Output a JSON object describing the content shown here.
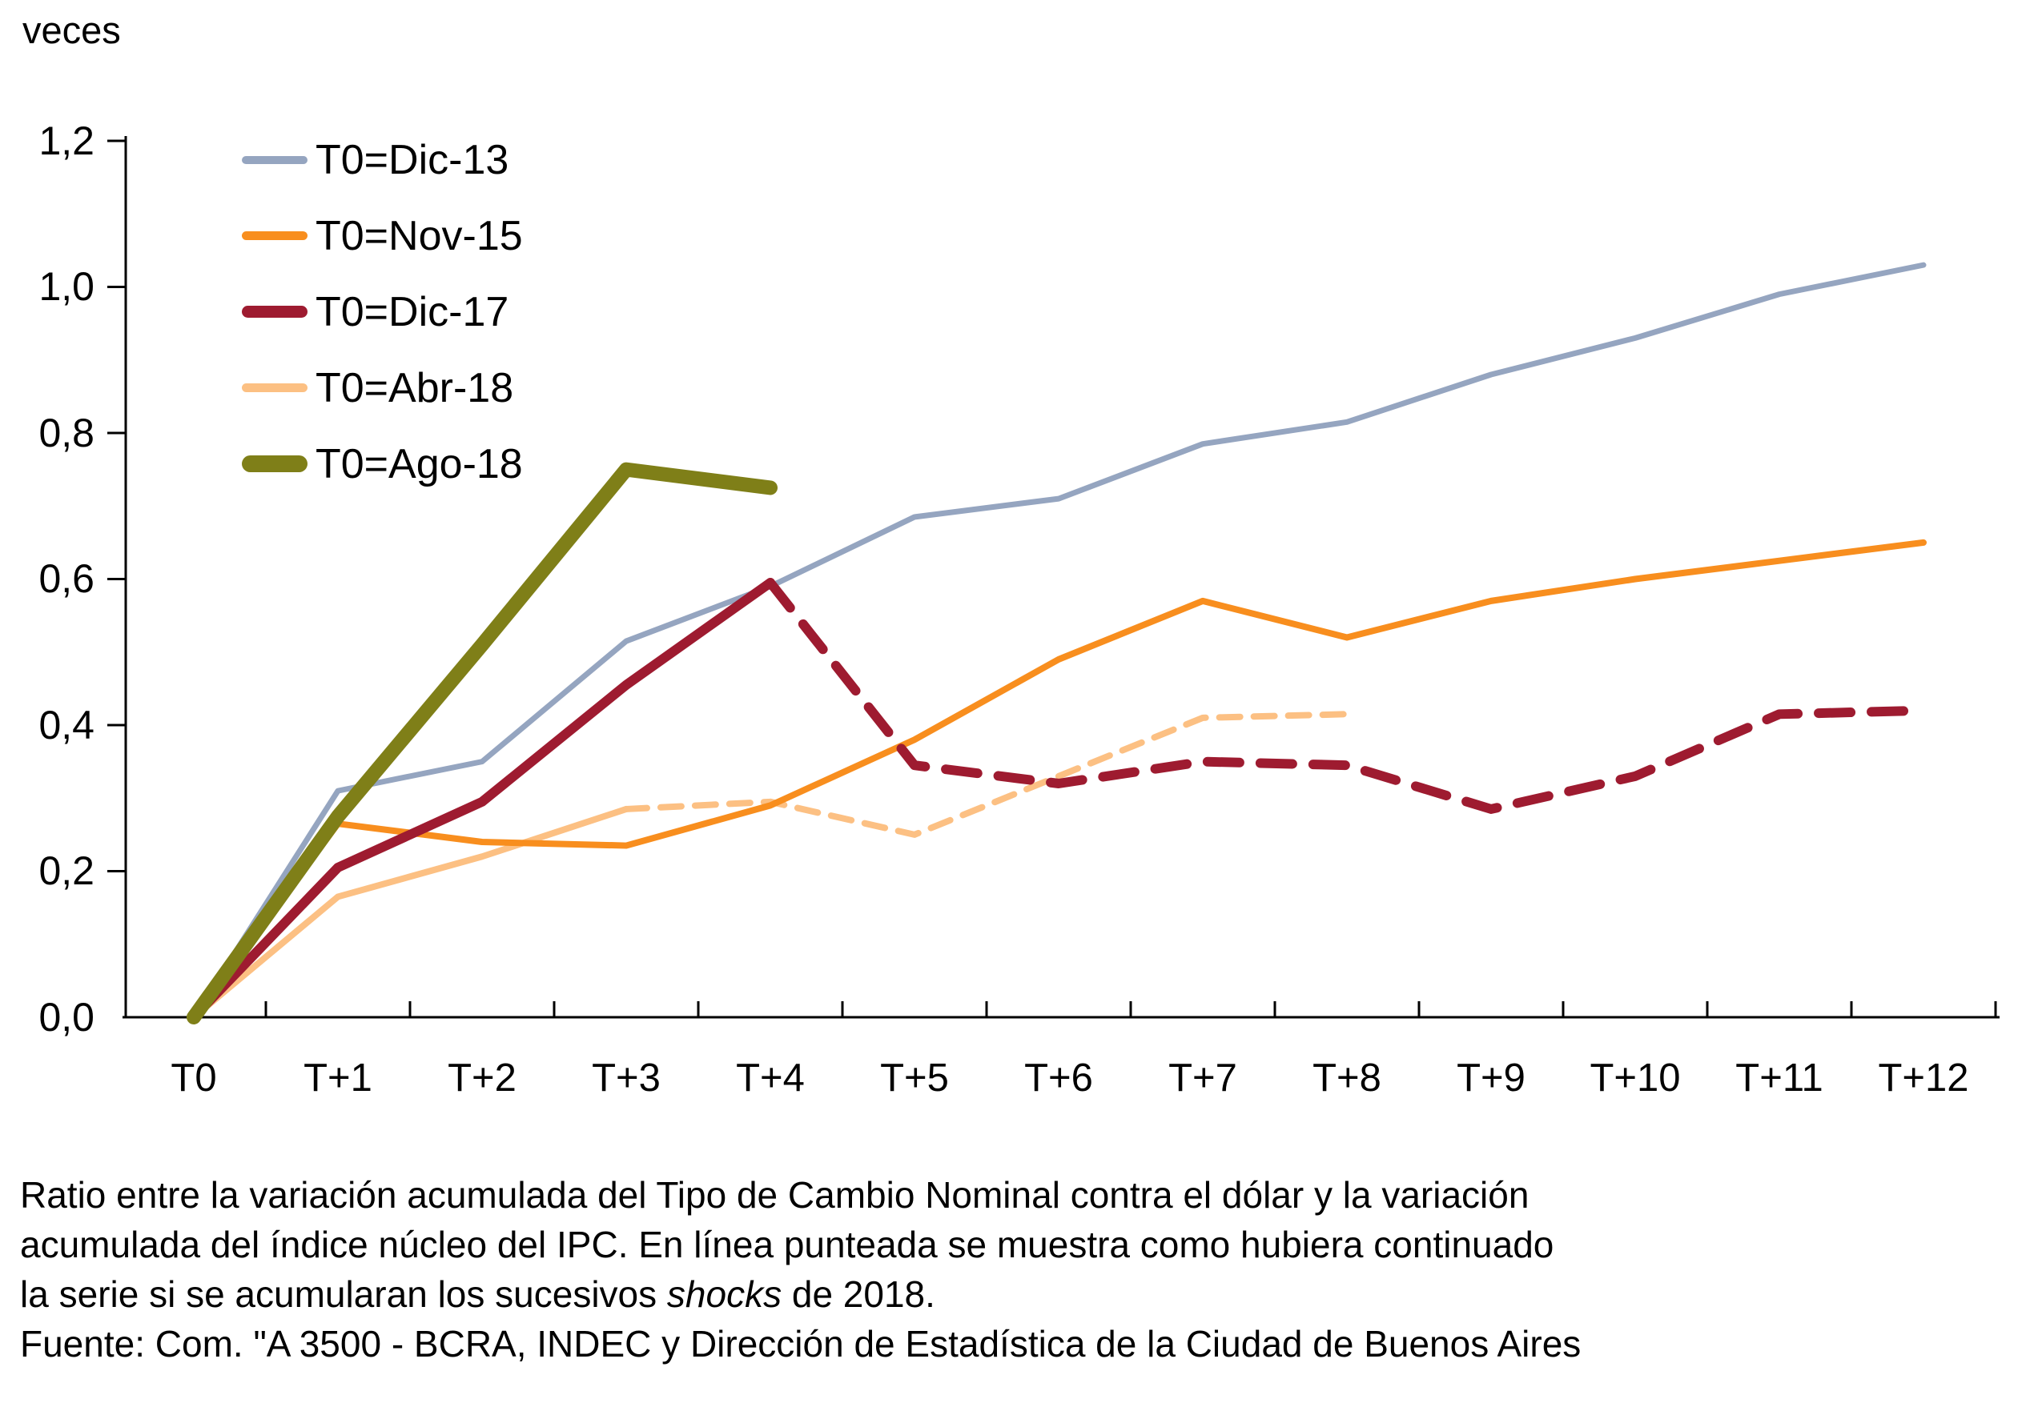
{
  "chart_data": {
    "type": "line",
    "title": "",
    "ylabel": "veces",
    "xlabel": "",
    "categories": [
      "T0",
      "T+1",
      "T+2",
      "T+3",
      "T+4",
      "T+5",
      "T+6",
      "T+7",
      "T+8",
      "T+9",
      "T+10",
      "T+11",
      "T+12"
    ],
    "ylim": [
      0,
      1.2
    ],
    "y_tick_values": [
      0.0,
      0.2,
      0.4,
      0.6,
      0.8,
      1.0,
      1.2
    ],
    "y_tick_labels": [
      "0,0",
      "0,2",
      "0,4",
      "0,6",
      "0,8",
      "1,0",
      "1,2"
    ],
    "grid": false,
    "legend_position": "top-left-inside",
    "dashed_meaning": "En linea punteada se muestra como hubiera continuado la serie si se acumularan los sucesivos shocks de 2018",
    "series": [
      {
        "name": "T0=Dic-13",
        "color": "#95A5C0",
        "line_width": 7,
        "segments": [
          {
            "style": "solid",
            "start_index": 0,
            "values": [
              0,
              0.31,
              0.35,
              0.515,
              0.59,
              0.685,
              0.71,
              0.785,
              0.815,
              0.88,
              0.93,
              0.99,
              1.03
            ]
          }
        ]
      },
      {
        "name": "T0=Nov-15",
        "color": "#F88E1E",
        "line_width": 8,
        "segments": [
          {
            "style": "solid",
            "start_index": 0,
            "values": [
              0,
              0.265,
              0.24,
              0.235,
              0.29,
              0.38,
              0.49,
              0.57,
              0.52,
              0.57,
              0.6,
              0.625,
              0.65
            ]
          }
        ]
      },
      {
        "name": "T0=Dic-17",
        "color": "#9E1B30",
        "line_width": 12,
        "segments": [
          {
            "style": "solid",
            "start_index": 0,
            "values": [
              0,
              0.205,
              0.295,
              0.455,
              0.595
            ]
          },
          {
            "style": "dashed",
            "start_index": 4,
            "values": [
              0.595,
              0.345,
              0.32,
              0.35,
              0.345,
              0.285,
              0.33,
              0.415,
              0.42
            ]
          }
        ]
      },
      {
        "name": "T0=Abr-18",
        "color": "#FCC083",
        "line_width": 8,
        "segments": [
          {
            "style": "solid",
            "start_index": 0,
            "values": [
              0,
              0.165,
              0.22,
              0.285
            ]
          },
          {
            "style": "dashed",
            "start_index": 3,
            "values": [
              0.285,
              0.295,
              0.25,
              0.33,
              0.41,
              0.415
            ]
          }
        ]
      },
      {
        "name": "T0=Ago-18",
        "color": "#7F7F18",
        "line_width": 18,
        "segments": [
          {
            "style": "solid",
            "start_index": 0,
            "values": [
              0,
              0.275,
              0.51,
              0.75,
              0.725
            ]
          }
        ]
      }
    ]
  },
  "caption": {
    "line1": "Ratio entre la variación acumulada del Tipo de Cambio Nominal contra el dólar y la variación",
    "line2": "acumulada del índice núcleo del IPC. En línea punteada se muestra como hubiera continuado",
    "line3_pre": "la serie si se acumularan los sucesivos ",
    "line3_italic": "shocks",
    "line3_post": " de 2018.",
    "line4": "Fuente: Com. \"A 3500 - BCRA, INDEC y Dirección de Estadística de la Ciudad de Buenos Aires"
  }
}
